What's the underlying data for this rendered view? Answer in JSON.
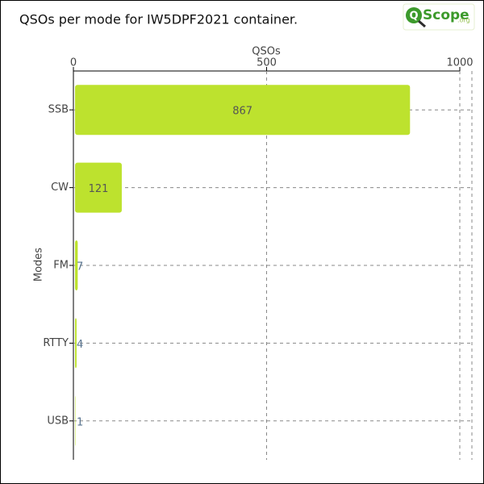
{
  "logo": {
    "letter": "Q",
    "name": "Scope",
    "suffix": ".org"
  },
  "chart_data": {
    "type": "bar",
    "orientation": "horizontal",
    "title": "QSOs per mode for IW5DPF2021 container.",
    "x_label": "QSOs",
    "y_label": "Modes",
    "categories": [
      "SSB",
      "CW",
      "FM",
      "RTTY",
      "USB"
    ],
    "values": [
      867,
      121,
      7,
      4,
      1
    ],
    "color": "#bde22e",
    "xlim": [
      0,
      1000
    ],
    "xticks": [
      0,
      500,
      1000
    ],
    "grid": true
  }
}
